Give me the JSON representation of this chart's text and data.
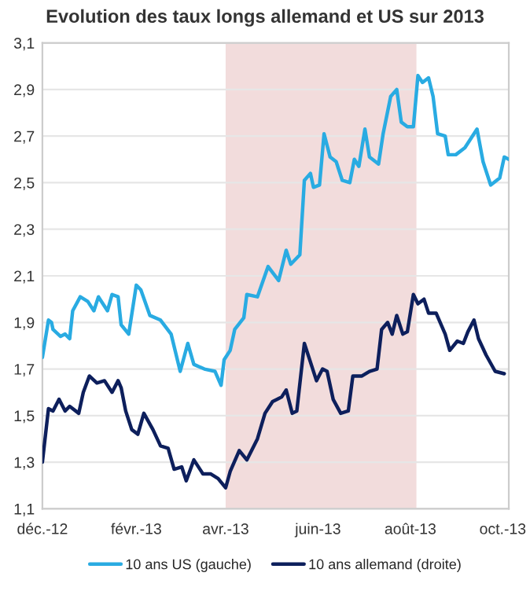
{
  "chart_data": {
    "type": "line",
    "title": "Evolution des taux longs allemand et US sur 2013",
    "series": [
      {
        "name": "10 ans US (gauche)",
        "color": "#29abe2",
        "x": [
          "2012-12-01",
          "2012-12-05",
          "2012-12-07",
          "2012-12-08",
          "2012-12-13",
          "2012-12-16",
          "2012-12-19",
          "2012-12-21",
          "2012-12-26",
          "2012-12-31",
          "2013-01-04",
          "2013-01-07",
          "2013-01-13",
          "2013-01-16",
          "2013-01-20",
          "2013-01-22",
          "2013-01-27",
          "2013-02-01",
          "2013-02-04",
          "2013-02-10",
          "2013-02-17",
          "2013-02-24",
          "2013-03-02",
          "2013-03-07",
          "2013-03-11",
          "2013-03-18",
          "2013-03-25",
          "2013-03-29",
          "2013-03-31",
          "2013-04-04",
          "2013-04-07",
          "2013-04-13",
          "2013-04-15",
          "2013-04-22",
          "2013-04-29",
          "2013-05-06",
          "2013-05-11",
          "2013-05-14",
          "2013-05-20",
          "2013-05-23",
          "2013-05-27",
          "2013-05-29",
          "2013-06-02",
          "2013-06-05",
          "2013-06-09",
          "2013-06-13",
          "2013-06-17",
          "2013-06-22",
          "2013-06-25",
          "2013-06-28",
          "2013-07-02",
          "2013-07-05",
          "2013-07-11",
          "2013-07-14",
          "2013-07-19",
          "2013-07-23",
          "2013-07-26",
          "2013-07-30",
          "2013-08-03",
          "2013-08-06",
          "2013-08-09",
          "2013-08-13",
          "2013-08-16",
          "2013-08-19",
          "2013-08-24",
          "2013-08-26",
          "2013-08-31",
          "2013-09-06",
          "2013-09-14",
          "2013-09-18",
          "2013-09-23",
          "2013-09-29",
          "2013-10-02",
          "2013-10-05"
        ],
        "values": [
          1.75,
          1.91,
          1.9,
          1.87,
          1.84,
          1.85,
          1.83,
          1.95,
          2.01,
          1.99,
          1.95,
          2.01,
          1.95,
          2.02,
          2.01,
          1.89,
          1.85,
          2.06,
          2.04,
          1.93,
          1.91,
          1.85,
          1.69,
          1.81,
          1.72,
          1.7,
          1.69,
          1.63,
          1.74,
          1.78,
          1.87,
          1.92,
          2.02,
          2.01,
          2.14,
          2.08,
          2.21,
          2.15,
          2.19,
          2.51,
          2.54,
          2.48,
          2.49,
          2.71,
          2.61,
          2.59,
          2.51,
          2.5,
          2.6,
          2.57,
          2.73,
          2.61,
          2.58,
          2.71,
          2.87,
          2.9,
          2.76,
          2.74,
          2.74,
          2.96,
          2.93,
          2.95,
          2.87,
          2.71,
          2.7,
          2.62,
          2.62,
          2.65,
          2.73,
          2.59,
          2.49,
          2.52,
          2.61,
          2.6
        ]
      },
      {
        "name": "10 ans allemand (droite)",
        "color": "#0d1f5c",
        "x": [
          "2012-12-01",
          "2012-12-05",
          "2012-12-08",
          "2012-12-12",
          "2012-12-16",
          "2012-12-19",
          "2012-12-25",
          "2012-12-28",
          "2013-01-01",
          "2013-01-06",
          "2013-01-11",
          "2013-01-16",
          "2013-01-20",
          "2013-01-22",
          "2013-01-25",
          "2013-01-29",
          "2013-02-02",
          "2013-02-06",
          "2013-02-12",
          "2013-02-17",
          "2013-02-22",
          "2013-02-26",
          "2013-03-03",
          "2013-03-06",
          "2013-03-11",
          "2013-03-17",
          "2013-03-22",
          "2013-03-27",
          "2013-04-01",
          "2013-04-04",
          "2013-04-10",
          "2013-04-15",
          "2013-04-22",
          "2013-04-27",
          "2013-05-02",
          "2013-05-08",
          "2013-05-11",
          "2013-05-15",
          "2013-05-18",
          "2013-05-23",
          "2013-05-27",
          "2013-05-31",
          "2013-06-04",
          "2013-06-07",
          "2013-06-11",
          "2013-06-16",
          "2013-06-21",
          "2013-06-24",
          "2013-06-30",
          "2013-07-05",
          "2013-07-10",
          "2013-07-13",
          "2013-07-17",
          "2013-07-20",
          "2013-07-23",
          "2013-07-27",
          "2013-07-30",
          "2013-08-03",
          "2013-08-06",
          "2013-08-10",
          "2013-08-13",
          "2013-08-18",
          "2013-08-24",
          "2013-08-27",
          "2013-09-01",
          "2013-09-05",
          "2013-09-08",
          "2013-09-12",
          "2013-09-15",
          "2013-09-20",
          "2013-09-26",
          "2013-10-02"
        ],
        "values": [
          1.3,
          1.53,
          1.52,
          1.57,
          1.52,
          1.54,
          1.51,
          1.6,
          1.67,
          1.64,
          1.65,
          1.6,
          1.65,
          1.62,
          1.52,
          1.44,
          1.42,
          1.51,
          1.44,
          1.37,
          1.36,
          1.27,
          1.28,
          1.22,
          1.31,
          1.25,
          1.25,
          1.23,
          1.19,
          1.26,
          1.35,
          1.31,
          1.4,
          1.51,
          1.56,
          1.58,
          1.61,
          1.51,
          1.52,
          1.81,
          1.73,
          1.65,
          1.7,
          1.69,
          1.57,
          1.51,
          1.52,
          1.67,
          1.67,
          1.69,
          1.7,
          1.87,
          1.9,
          1.85,
          1.93,
          1.85,
          1.86,
          2.02,
          1.98,
          2.0,
          1.94,
          1.94,
          1.85,
          1.78,
          1.82,
          1.81,
          1.86,
          1.91,
          1.83,
          1.76,
          1.69,
          1.68
        ]
      }
    ],
    "xlim": [
      "2012-12-01",
      "2013-10-05"
    ],
    "xticks": [
      {
        "value": "2012-12-01",
        "label": "déc.-12"
      },
      {
        "value": "2013-02-01",
        "label": "févr.-13"
      },
      {
        "value": "2013-04-01",
        "label": "avr.-13"
      },
      {
        "value": "2013-06-01",
        "label": "juin-13"
      },
      {
        "value": "2013-08-01",
        "label": "août-13"
      },
      {
        "value": "2013-10-01",
        "label": "oct.-13"
      }
    ],
    "ylim": [
      1.1,
      3.1
    ],
    "yticks": [
      {
        "value": 1.1,
        "label": "1,1"
      },
      {
        "value": 1.3,
        "label": "1,3"
      },
      {
        "value": 1.5,
        "label": "1,5"
      },
      {
        "value": 1.7,
        "label": "1,7"
      },
      {
        "value": 1.9,
        "label": "1,9"
      },
      {
        "value": 2.1,
        "label": "2,1"
      },
      {
        "value": 2.3,
        "label": "2,3"
      },
      {
        "value": 2.5,
        "label": "2,5"
      },
      {
        "value": 2.7,
        "label": "2,7"
      },
      {
        "value": 2.9,
        "label": "2,9"
      },
      {
        "value": 3.1,
        "label": "3,1"
      }
    ],
    "bands": [
      {
        "axis": "x",
        "from": "2013-04-01",
        "to": "2013-08-05",
        "color": "#f2dcdc"
      }
    ],
    "grid": "y",
    "legend": "bottom",
    "line_style": "solid",
    "marker": "none"
  }
}
